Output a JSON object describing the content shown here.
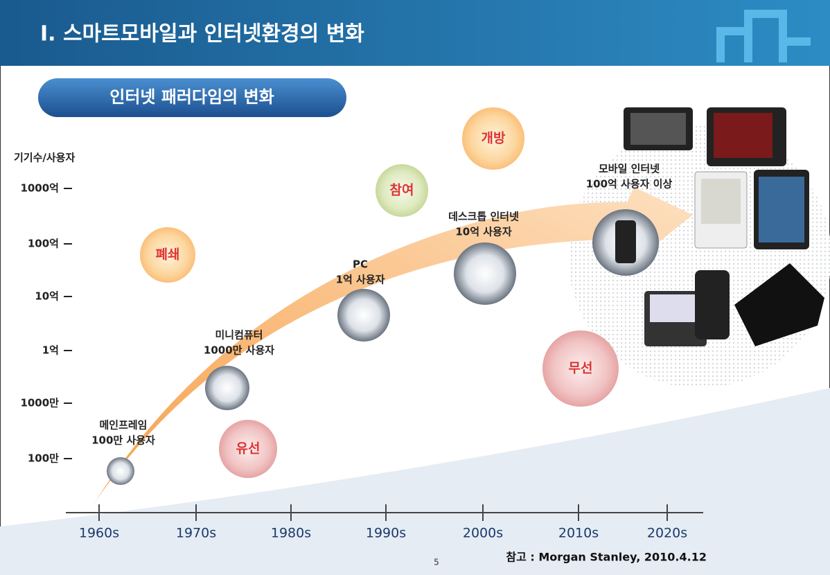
{
  "header": {
    "title": "I. 스마트모바일과 인터넷환경의 변화",
    "subtitle": "인터넷 패러다임의 변화"
  },
  "y_axis": {
    "title": "기기수/사용자",
    "labels": [
      "1000억",
      "100억",
      "10억",
      "1억",
      "1000만",
      "100만"
    ]
  },
  "x_axis": {
    "labels": [
      "1960s",
      "1970s",
      "1980s",
      "1990s",
      "2000s",
      "2010s",
      "2020s"
    ]
  },
  "stages": [
    {
      "lines": [
        "메인프레임",
        "100만 사용자"
      ]
    },
    {
      "lines": [
        "미니컴퓨터",
        "1000만 사용자"
      ]
    },
    {
      "lines": [
        "PC",
        "1억 사용자"
      ]
    },
    {
      "lines": [
        "데스크톱 인터넷",
        "10억 사용자"
      ]
    },
    {
      "lines": [
        "모바일 인터넷",
        "100억 사용자 이상"
      ]
    }
  ],
  "bubbles": [
    "개방",
    "참여",
    "폐쇄",
    "유선",
    "무선"
  ],
  "footer": {
    "source": "참고 : Morgan Stanley, 2010.4.12",
    "page_number": "5"
  }
}
